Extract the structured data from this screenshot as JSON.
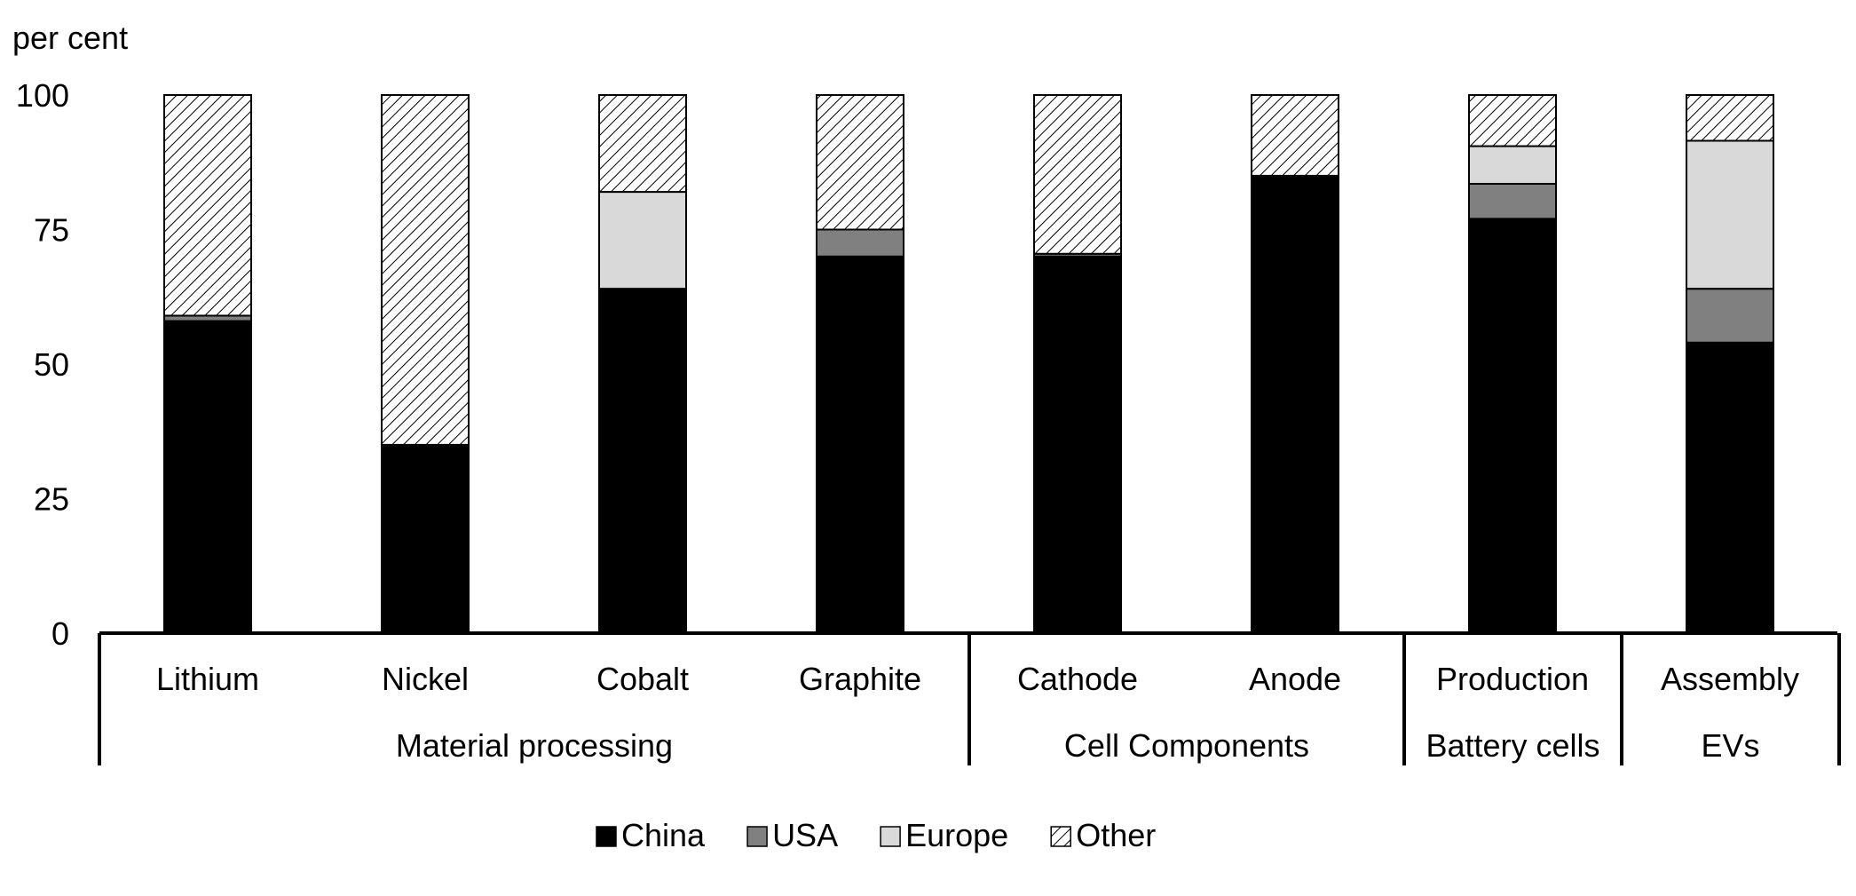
{
  "chart_data": {
    "type": "bar",
    "stacked": true,
    "ylabel": "per cent",
    "ylim": [
      0,
      100
    ],
    "yticks": [
      "0",
      "25",
      "50",
      "75",
      "100"
    ],
    "categories": [
      "Lithium",
      "Nickel",
      "Cobalt",
      "Graphite",
      "Cathode",
      "Anode",
      "Production",
      "Assembly"
    ],
    "groups": [
      {
        "label": "Material processing",
        "categories": [
          "Lithium",
          "Nickel",
          "Cobalt",
          "Graphite"
        ]
      },
      {
        "label": "Cell Components",
        "categories": [
          "Cathode",
          "Anode"
        ]
      },
      {
        "label": "Battery cells",
        "categories": [
          "Production"
        ]
      },
      {
        "label": "EVs",
        "categories": [
          "Assembly"
        ]
      }
    ],
    "series": [
      {
        "name": "China",
        "color": "#000000",
        "values": [
          58,
          35,
          64,
          70,
          70,
          85,
          77,
          54
        ]
      },
      {
        "name": "USA",
        "color": "#808080",
        "values": [
          1,
          0,
          0,
          5,
          0.5,
          0,
          6.5,
          10
        ]
      },
      {
        "name": "Europe",
        "color": "#d9d9d9",
        "values": [
          0,
          0,
          18,
          0,
          0,
          0,
          7,
          27.5
        ]
      },
      {
        "name": "Other",
        "color": "hatched",
        "values": [
          41,
          65,
          18,
          25,
          29.5,
          15,
          9.5,
          8.5
        ]
      }
    ],
    "legend_position": "bottom",
    "grid": false
  }
}
